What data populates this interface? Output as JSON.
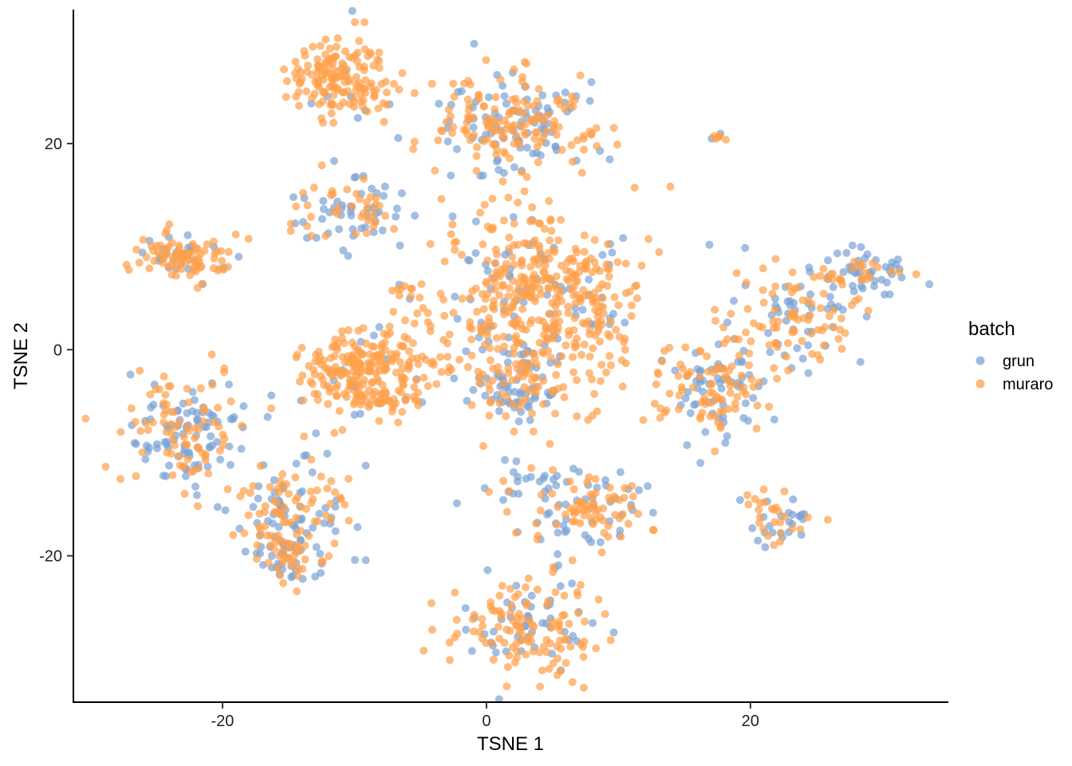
{
  "chart_data": {
    "type": "scatter",
    "title": "",
    "xlabel": "TSNE 1",
    "ylabel": "TSNE 2",
    "xlim": [
      -31.3,
      35
    ],
    "ylim": [
      -34.2,
      33
    ],
    "xticks": [
      -20,
      0,
      20
    ],
    "yticks": [
      -20,
      0,
      20
    ],
    "xtick_labels": [
      "-20",
      "0",
      "20"
    ],
    "ytick_labels": [
      "-20",
      "0",
      "20"
    ],
    "grid": false,
    "legend": {
      "title": "batch",
      "placement": "right",
      "entries": [
        {
          "name": "grun",
          "color": "#7ba3d6"
        },
        {
          "name": "muraro",
          "color": "#ffa04a"
        }
      ]
    },
    "clusters": [
      {
        "x": -11,
        "y": 26.5,
        "sx": 2.0,
        "sy": 2.2,
        "n": 160,
        "grun": 0.08
      },
      {
        "x": 2,
        "y": 22,
        "sx": 3.0,
        "sy": 2.2,
        "n": 230,
        "grun": 0.35
      },
      {
        "x": -10.5,
        "y": 13.5,
        "sx": 2.5,
        "sy": 1.6,
        "n": 90,
        "grun": 0.6
      },
      {
        "x": -23,
        "y": 9,
        "sx": 1.6,
        "sy": 1.1,
        "n": 110,
        "grun": 0.25
      },
      {
        "x": 4,
        "y": 5,
        "sx": 4.0,
        "sy": 4.5,
        "n": 480,
        "grun": 0.2
      },
      {
        "x": 2,
        "y": -4,
        "sx": 2.0,
        "sy": 2.0,
        "n": 100,
        "grun": 0.5
      },
      {
        "x": -9.5,
        "y": -2,
        "sx": 2.3,
        "sy": 2.0,
        "n": 220,
        "grun": 0.05
      },
      {
        "x": 17,
        "y": -4,
        "sx": 2.0,
        "sy": 2.5,
        "n": 140,
        "grun": 0.45
      },
      {
        "x": 23,
        "y": 3,
        "sx": 3.0,
        "sy": 2.5,
        "n": 130,
        "grun": 0.5
      },
      {
        "x": 29,
        "y": 7.5,
        "sx": 2.0,
        "sy": 1.2,
        "n": 70,
        "grun": 0.55
      },
      {
        "x": -23,
        "y": -8,
        "sx": 2.3,
        "sy": 2.8,
        "n": 170,
        "grun": 0.55
      },
      {
        "x": -15,
        "y": -16,
        "sx": 2.8,
        "sy": 2.5,
        "n": 140,
        "grun": 0.55
      },
      {
        "x": -15,
        "y": -20,
        "sx": 1.2,
        "sy": 1.4,
        "n": 60,
        "grun": 0.4
      },
      {
        "x": 3,
        "y": -27,
        "sx": 2.5,
        "sy": 2.6,
        "n": 170,
        "grun": 0.25
      },
      {
        "x": 8,
        "y": -16,
        "sx": 2.3,
        "sy": 1.7,
        "n": 110,
        "grun": 0.3
      },
      {
        "x": 22,
        "y": -16.5,
        "sx": 1.3,
        "sy": 1.3,
        "n": 50,
        "grun": 0.6
      },
      {
        "x": 3,
        "y": -13,
        "sx": 2.0,
        "sy": 1.2,
        "n": 30,
        "grun": 0.7
      },
      {
        "x": -7,
        "y": -5,
        "sx": 1.5,
        "sy": 0.6,
        "n": 30,
        "grun": 0.1
      },
      {
        "x": -6,
        "y": 6,
        "sx": 0.7,
        "sy": 0.4,
        "n": 10,
        "grun": 0.2
      },
      {
        "x": 17.5,
        "y": 20.6,
        "sx": 0.25,
        "sy": 0.2,
        "n": 8,
        "grun": 0.4
      },
      {
        "x": 8,
        "y": 21,
        "sx": 0.3,
        "sy": 0.5,
        "n": 6,
        "grun": 0.1
      }
    ]
  }
}
